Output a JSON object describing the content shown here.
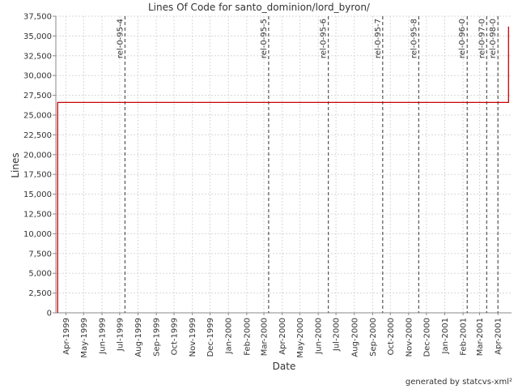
{
  "chart_data": {
    "type": "line",
    "title": "Lines Of Code for santo_dominion/lord_byron/",
    "xlabel": "Date",
    "ylabel": "Lines",
    "footer": "generated by statcvs-xml²",
    "ylim": [
      0,
      37500
    ],
    "xlim": [
      "1999-03-15",
      "2001-04-24"
    ],
    "grid": true,
    "y_ticks": [
      0,
      2500,
      5000,
      7500,
      10000,
      12500,
      15000,
      17500,
      20000,
      22500,
      25000,
      27500,
      30000,
      32500,
      35000,
      37500
    ],
    "y_tick_labels": [
      "0",
      "2,500",
      "5,000",
      "7,500",
      "10,000",
      "12,500",
      "15,000",
      "17,500",
      "20,000",
      "22,500",
      "25,000",
      "27,500",
      "30,000",
      "32,500",
      "35,000",
      "37,500"
    ],
    "x_ticks": [
      {
        "date": "1999-04-01",
        "label": "Apr-1999"
      },
      {
        "date": "1999-05-01",
        "label": "May-1999"
      },
      {
        "date": "1999-06-01",
        "label": "Jun-1999"
      },
      {
        "date": "1999-07-01",
        "label": "Jul-1999"
      },
      {
        "date": "1999-08-01",
        "label": "Aug-1999"
      },
      {
        "date": "1999-09-01",
        "label": "Sep-1999"
      },
      {
        "date": "1999-10-01",
        "label": "Oct-1999"
      },
      {
        "date": "1999-11-01",
        "label": "Nov-1999"
      },
      {
        "date": "1999-12-01",
        "label": "Dec-1999"
      },
      {
        "date": "2000-01-01",
        "label": "Jan-2000"
      },
      {
        "date": "2000-02-01",
        "label": "Feb-2000"
      },
      {
        "date": "2000-03-01",
        "label": "Mar-2000"
      },
      {
        "date": "2000-04-01",
        "label": "Apr-2000"
      },
      {
        "date": "2000-05-01",
        "label": "May-2000"
      },
      {
        "date": "2000-06-01",
        "label": "Jun-2000"
      },
      {
        "date": "2000-07-01",
        "label": "Jul-2000"
      },
      {
        "date": "2000-08-01",
        "label": "Aug-2000"
      },
      {
        "date": "2000-09-01",
        "label": "Sep-2000"
      },
      {
        "date": "2000-10-01",
        "label": "Oct-2000"
      },
      {
        "date": "2000-11-01",
        "label": "Nov-2000"
      },
      {
        "date": "2000-12-01",
        "label": "Dec-2000"
      },
      {
        "date": "2001-01-01",
        "label": "Jan-2001"
      },
      {
        "date": "2001-02-01",
        "label": "Feb-2001"
      },
      {
        "date": "2001-03-01",
        "label": "Mar-2001"
      },
      {
        "date": "2001-04-01",
        "label": "Apr-2001"
      }
    ],
    "series": [
      {
        "color": "#cc0000",
        "step": true,
        "points": [
          {
            "x": "1999-03-18",
            "y": 0
          },
          {
            "x": "1999-03-18",
            "y": 26600
          },
          {
            "x": "2001-04-19",
            "y": 26600
          },
          {
            "x": "2001-04-19",
            "y": 36200
          }
        ]
      }
    ],
    "markers": [
      {
        "date": "1999-07-10",
        "label": "rel-0-95-4"
      },
      {
        "date": "2000-03-09",
        "label": "rel-0-95-5"
      },
      {
        "date": "2000-06-18",
        "label": "rel-0-95-6"
      },
      {
        "date": "2000-09-18",
        "label": "rel-0-95-7"
      },
      {
        "date": "2000-11-18",
        "label": "rel-0-95-8"
      },
      {
        "date": "2001-02-08",
        "label": "rel-0-96-0"
      },
      {
        "date": "2001-03-13",
        "label": "rel-0-97-0"
      },
      {
        "date": "2001-04-01",
        "label": "rel-0-98-0"
      }
    ],
    "colors": {
      "line": "#cc0000",
      "marker": "#555555",
      "grid": "#d8d8d8",
      "axis": "#888888",
      "text": "#333333"
    }
  }
}
